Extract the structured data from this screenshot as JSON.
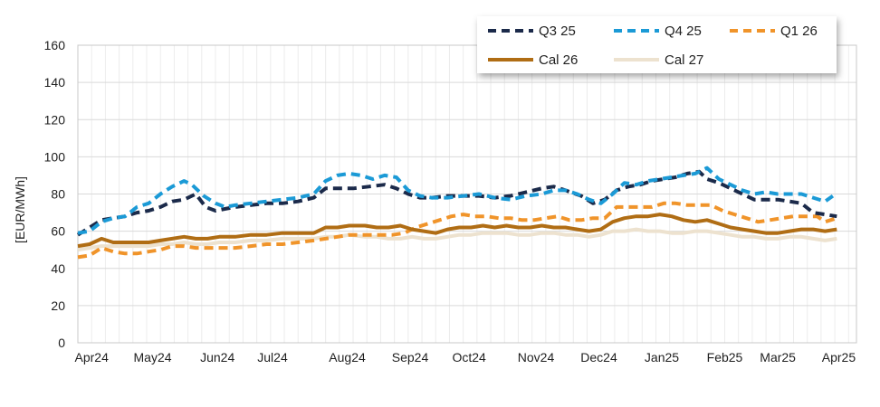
{
  "chart_data": {
    "type": "line",
    "ylabel": "[EUR/MWh]",
    "ylim": [
      0,
      160
    ],
    "yticks": [
      0,
      20,
      40,
      60,
      80,
      100,
      120,
      140,
      160
    ],
    "grid": true,
    "legend_position": "top-right",
    "x_tick_labels": [
      {
        "label": "Apr24",
        "day": 7
      },
      {
        "label": "May24",
        "day": 38
      },
      {
        "label": "Jun24",
        "day": 71
      },
      {
        "label": "Jul24",
        "day": 99
      },
      {
        "label": "Aug24",
        "day": 137
      },
      {
        "label": "Sep24",
        "day": 169
      },
      {
        "label": "Oct24",
        "day": 199
      },
      {
        "label": "Nov24",
        "day": 233
      },
      {
        "label": "Dec24",
        "day": 265
      },
      {
        "label": "Jan25",
        "day": 297
      },
      {
        "label": "Feb25",
        "day": 329
      },
      {
        "label": "Mar25",
        "day": 356
      },
      {
        "label": "Apr25",
        "day": 387
      }
    ],
    "series": [
      {
        "name": "Q3 25",
        "color": "#1b2a4a",
        "style": "dashed",
        "points": [
          [
            0,
            58
          ],
          [
            6,
            62
          ],
          [
            12,
            66
          ],
          [
            18,
            67
          ],
          [
            24,
            68
          ],
          [
            30,
            70
          ],
          [
            36,
            71
          ],
          [
            42,
            73
          ],
          [
            48,
            76
          ],
          [
            54,
            77
          ],
          [
            60,
            80
          ],
          [
            65,
            73
          ],
          [
            70,
            71
          ],
          [
            75,
            72
          ],
          [
            80,
            73
          ],
          [
            88,
            74
          ],
          [
            96,
            75
          ],
          [
            104,
            75
          ],
          [
            112,
            76
          ],
          [
            120,
            78
          ],
          [
            126,
            83
          ],
          [
            132,
            83
          ],
          [
            140,
            83
          ],
          [
            148,
            84
          ],
          [
            156,
            85
          ],
          [
            162,
            83
          ],
          [
            168,
            80
          ],
          [
            174,
            78
          ],
          [
            180,
            78
          ],
          [
            188,
            79
          ],
          [
            196,
            79
          ],
          [
            204,
            79
          ],
          [
            212,
            78
          ],
          [
            220,
            79
          ],
          [
            228,
            81
          ],
          [
            236,
            83
          ],
          [
            242,
            84
          ],
          [
            248,
            82
          ],
          [
            256,
            79
          ],
          [
            262,
            75
          ],
          [
            268,
            77
          ],
          [
            274,
            82
          ],
          [
            280,
            84
          ],
          [
            286,
            85
          ],
          [
            292,
            87
          ],
          [
            298,
            88
          ],
          [
            304,
            89
          ],
          [
            310,
            91
          ],
          [
            316,
            92
          ],
          [
            320,
            88
          ],
          [
            326,
            86
          ],
          [
            332,
            83
          ],
          [
            338,
            80
          ],
          [
            344,
            77
          ],
          [
            350,
            77
          ],
          [
            356,
            77
          ],
          [
            362,
            76
          ],
          [
            368,
            75
          ],
          [
            374,
            70
          ],
          [
            380,
            69
          ],
          [
            386,
            68
          ]
        ]
      },
      {
        "name": "Q4 25",
        "color": "#1b9ad6",
        "style": "dashed",
        "points": [
          [
            0,
            59
          ],
          [
            6,
            60
          ],
          [
            12,
            65
          ],
          [
            18,
            67
          ],
          [
            24,
            68
          ],
          [
            30,
            73
          ],
          [
            36,
            75
          ],
          [
            42,
            80
          ],
          [
            48,
            84
          ],
          [
            54,
            87
          ],
          [
            58,
            85
          ],
          [
            64,
            79
          ],
          [
            70,
            75
          ],
          [
            75,
            73
          ],
          [
            80,
            74
          ],
          [
            88,
            75
          ],
          [
            96,
            76
          ],
          [
            104,
            77
          ],
          [
            112,
            78
          ],
          [
            120,
            80
          ],
          [
            126,
            87
          ],
          [
            132,
            90
          ],
          [
            138,
            91
          ],
          [
            144,
            90
          ],
          [
            150,
            88
          ],
          [
            156,
            90
          ],
          [
            162,
            89
          ],
          [
            168,
            82
          ],
          [
            174,
            79
          ],
          [
            180,
            78
          ],
          [
            188,
            78
          ],
          [
            196,
            79
          ],
          [
            204,
            80
          ],
          [
            212,
            78
          ],
          [
            220,
            77
          ],
          [
            228,
            79
          ],
          [
            236,
            80
          ],
          [
            242,
            82
          ],
          [
            248,
            82
          ],
          [
            254,
            80
          ],
          [
            260,
            77
          ],
          [
            266,
            75
          ],
          [
            272,
            80
          ],
          [
            278,
            86
          ],
          [
            284,
            85
          ],
          [
            290,
            87
          ],
          [
            296,
            88
          ],
          [
            302,
            89
          ],
          [
            308,
            90
          ],
          [
            314,
            91
          ],
          [
            320,
            94
          ],
          [
            326,
            88
          ],
          [
            332,
            85
          ],
          [
            338,
            82
          ],
          [
            344,
            80
          ],
          [
            350,
            81
          ],
          [
            356,
            80
          ],
          [
            362,
            80
          ],
          [
            368,
            80
          ],
          [
            374,
            78
          ],
          [
            380,
            76
          ],
          [
            384,
            79
          ]
        ]
      },
      {
        "name": "Q1 26",
        "color": "#f0942a",
        "style": "dashed",
        "points": [
          [
            0,
            46
          ],
          [
            6,
            47
          ],
          [
            12,
            51
          ],
          [
            18,
            49
          ],
          [
            24,
            48
          ],
          [
            30,
            48
          ],
          [
            36,
            49
          ],
          [
            42,
            50
          ],
          [
            48,
            52
          ],
          [
            54,
            52
          ],
          [
            60,
            51
          ],
          [
            66,
            51
          ],
          [
            72,
            51
          ],
          [
            80,
            51
          ],
          [
            88,
            52
          ],
          [
            96,
            53
          ],
          [
            104,
            53
          ],
          [
            112,
            54
          ],
          [
            120,
            55
          ],
          [
            126,
            56
          ],
          [
            132,
            57
          ],
          [
            138,
            58
          ],
          [
            146,
            58
          ],
          [
            154,
            58
          ],
          [
            160,
            58
          ],
          [
            166,
            59
          ],
          [
            172,
            62
          ],
          [
            178,
            64
          ],
          [
            184,
            66
          ],
          [
            190,
            68
          ],
          [
            196,
            69
          ],
          [
            202,
            68
          ],
          [
            208,
            68
          ],
          [
            214,
            67
          ],
          [
            220,
            67
          ],
          [
            226,
            66
          ],
          [
            232,
            66
          ],
          [
            238,
            67
          ],
          [
            244,
            68
          ],
          [
            250,
            66
          ],
          [
            256,
            66
          ],
          [
            262,
            67
          ],
          [
            268,
            67
          ],
          [
            274,
            73
          ],
          [
            280,
            73
          ],
          [
            286,
            73
          ],
          [
            292,
            73
          ],
          [
            298,
            75
          ],
          [
            304,
            75
          ],
          [
            310,
            74
          ],
          [
            316,
            74
          ],
          [
            322,
            74
          ],
          [
            328,
            71
          ],
          [
            334,
            69
          ],
          [
            340,
            67
          ],
          [
            346,
            65
          ],
          [
            352,
            66
          ],
          [
            358,
            67
          ],
          [
            364,
            68
          ],
          [
            370,
            68
          ],
          [
            376,
            68
          ],
          [
            380,
            65
          ],
          [
            386,
            67
          ]
        ]
      },
      {
        "name": "Cal 26",
        "color": "#b06d14",
        "style": "solid",
        "points": [
          [
            0,
            52
          ],
          [
            6,
            53
          ],
          [
            12,
            56
          ],
          [
            18,
            54
          ],
          [
            24,
            54
          ],
          [
            30,
            54
          ],
          [
            36,
            54
          ],
          [
            42,
            55
          ],
          [
            48,
            56
          ],
          [
            54,
            57
          ],
          [
            60,
            56
          ],
          [
            66,
            56
          ],
          [
            72,
            57
          ],
          [
            80,
            57
          ],
          [
            88,
            58
          ],
          [
            96,
            58
          ],
          [
            104,
            59
          ],
          [
            112,
            59
          ],
          [
            120,
            59
          ],
          [
            126,
            62
          ],
          [
            132,
            62
          ],
          [
            138,
            63
          ],
          [
            146,
            63
          ],
          [
            152,
            62
          ],
          [
            158,
            62
          ],
          [
            164,
            63
          ],
          [
            170,
            61
          ],
          [
            176,
            60
          ],
          [
            182,
            59
          ],
          [
            188,
            61
          ],
          [
            194,
            62
          ],
          [
            200,
            62
          ],
          [
            206,
            63
          ],
          [
            212,
            62
          ],
          [
            218,
            63
          ],
          [
            224,
            62
          ],
          [
            230,
            62
          ],
          [
            236,
            63
          ],
          [
            242,
            62
          ],
          [
            248,
            62
          ],
          [
            254,
            61
          ],
          [
            260,
            60
          ],
          [
            266,
            61
          ],
          [
            272,
            65
          ],
          [
            278,
            67
          ],
          [
            284,
            68
          ],
          [
            290,
            68
          ],
          [
            296,
            69
          ],
          [
            302,
            68
          ],
          [
            308,
            66
          ],
          [
            314,
            65
          ],
          [
            320,
            66
          ],
          [
            326,
            64
          ],
          [
            332,
            62
          ],
          [
            338,
            61
          ],
          [
            344,
            60
          ],
          [
            350,
            59
          ],
          [
            356,
            59
          ],
          [
            362,
            60
          ],
          [
            368,
            61
          ],
          [
            374,
            61
          ],
          [
            380,
            60
          ],
          [
            386,
            61
          ]
        ]
      },
      {
        "name": "Cal 27",
        "color": "#ede2cf",
        "style": "solid",
        "points": [
          [
            0,
            50
          ],
          [
            6,
            51
          ],
          [
            12,
            52
          ],
          [
            18,
            52
          ],
          [
            24,
            52
          ],
          [
            30,
            52
          ],
          [
            36,
            52
          ],
          [
            42,
            53
          ],
          [
            48,
            53
          ],
          [
            54,
            54
          ],
          [
            60,
            53
          ],
          [
            66,
            53
          ],
          [
            72,
            54
          ],
          [
            80,
            54
          ],
          [
            88,
            55
          ],
          [
            96,
            55
          ],
          [
            104,
            56
          ],
          [
            112,
            56
          ],
          [
            120,
            56
          ],
          [
            126,
            57
          ],
          [
            132,
            57
          ],
          [
            138,
            58
          ],
          [
            146,
            57
          ],
          [
            152,
            57
          ],
          [
            158,
            56
          ],
          [
            164,
            56
          ],
          [
            170,
            57
          ],
          [
            176,
            56
          ],
          [
            182,
            56
          ],
          [
            188,
            57
          ],
          [
            194,
            58
          ],
          [
            200,
            58
          ],
          [
            206,
            59
          ],
          [
            212,
            59
          ],
          [
            218,
            59
          ],
          [
            224,
            58
          ],
          [
            230,
            58
          ],
          [
            236,
            59
          ],
          [
            242,
            59
          ],
          [
            248,
            58
          ],
          [
            254,
            58
          ],
          [
            260,
            57
          ],
          [
            266,
            58
          ],
          [
            272,
            60
          ],
          [
            278,
            60
          ],
          [
            284,
            61
          ],
          [
            290,
            60
          ],
          [
            296,
            60
          ],
          [
            302,
            59
          ],
          [
            308,
            59
          ],
          [
            314,
            60
          ],
          [
            320,
            60
          ],
          [
            326,
            59
          ],
          [
            332,
            58
          ],
          [
            338,
            57
          ],
          [
            344,
            57
          ],
          [
            350,
            56
          ],
          [
            356,
            56
          ],
          [
            362,
            57
          ],
          [
            368,
            57
          ],
          [
            374,
            56
          ],
          [
            380,
            55
          ],
          [
            386,
            56
          ]
        ]
      }
    ]
  }
}
